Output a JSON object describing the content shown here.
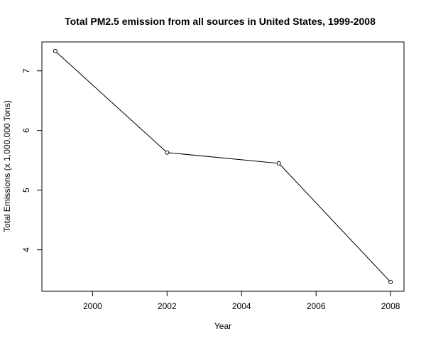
{
  "chart_data": {
    "type": "line",
    "title": "Total PM2.5 emission from all sources in United States, 1999-2008",
    "xlabel": "Year",
    "ylabel": "Total Emissions (x 1,000,000 Tons)",
    "x": [
      1999,
      2002,
      2005,
      2008
    ],
    "y": [
      7.33,
      5.63,
      5.45,
      3.46
    ],
    "xticks": [
      2000,
      2002,
      2004,
      2006,
      2008
    ],
    "yticks": [
      4,
      5,
      6,
      7
    ],
    "xlim": [
      1998.64,
      2008.36
    ],
    "ylim": [
      3.305,
      7.485
    ],
    "grid": false,
    "marker": "open-circle",
    "line_color": "#000000"
  }
}
